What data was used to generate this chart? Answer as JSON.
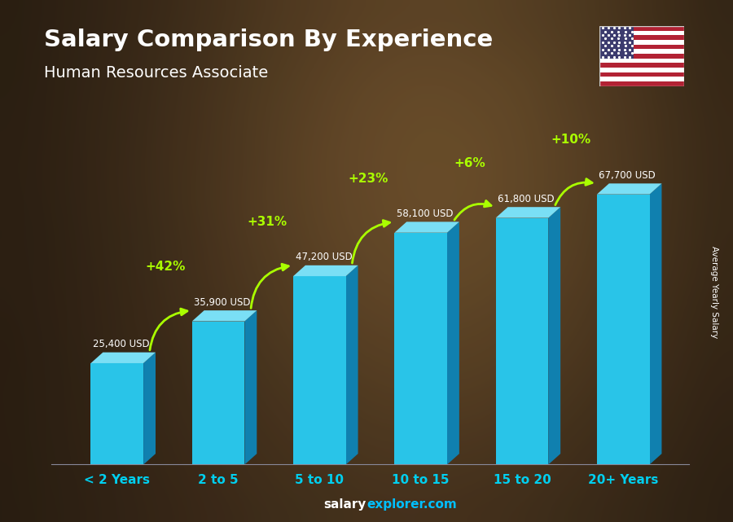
{
  "title": "Salary Comparison By Experience",
  "subtitle": "Human Resources Associate",
  "categories": [
    "< 2 Years",
    "2 to 5",
    "5 to 10",
    "10 to 15",
    "15 to 20",
    "20+ Years"
  ],
  "values": [
    25400,
    35900,
    47200,
    58100,
    61800,
    67700
  ],
  "labels": [
    "25,400 USD",
    "35,900 USD",
    "47,200 USD",
    "58,100 USD",
    "61,800 USD",
    "67,700 USD"
  ],
  "pct_changes": [
    "+42%",
    "+31%",
    "+23%",
    "+6%",
    "+10%"
  ],
  "bar_face_color": "#29C4E8",
  "bar_side_color": "#1080AF",
  "bar_top_color": "#7ADFF5",
  "bg_color": "#2a1f1a",
  "title_color": "#FFFFFF",
  "subtitle_color": "#FFFFFF",
  "label_color": "#FFFFFF",
  "xtick_color": "#00CFEF",
  "pct_color": "#AAFF00",
  "arrow_color": "#AAFF00",
  "footer_salary_color": "#FFFFFF",
  "footer_explorer_color": "#00BFFF",
  "ylabel_text": "Average Yearly Salary",
  "ylim": [
    0,
    85000
  ]
}
